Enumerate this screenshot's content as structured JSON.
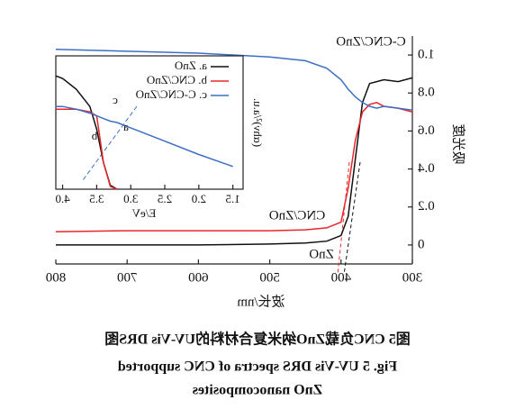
{
  "chart_data": [
    {
      "type": "line",
      "x_label": "波长/nm",
      "y_label": "吸光度",
      "x": [
        800,
        700,
        600,
        500,
        450,
        420,
        400,
        390,
        380,
        370,
        360,
        350,
        340,
        320,
        300
      ],
      "series": [
        {
          "name": "ZnO",
          "color": "#111111",
          "values": [
            0,
            0,
            0,
            0.005,
            0.01,
            0.02,
            0.05,
            0.15,
            0.45,
            0.75,
            0.85,
            0.86,
            0.87,
            0.86,
            0.88
          ]
        },
        {
          "name": "CNC/ZnO",
          "color": "#e8262a",
          "values": [
            0.07,
            0.075,
            0.075,
            0.075,
            0.08,
            0.09,
            0.12,
            0.3,
            0.55,
            0.7,
            0.74,
            0.75,
            0.73,
            0.72,
            0.7
          ]
        },
        {
          "name": "C-CNC/ZnO",
          "color": "#3c6fc4",
          "values": [
            1.03,
            1.02,
            1.01,
            0.99,
            0.97,
            0.93,
            0.87,
            0.82,
            0.78,
            0.75,
            0.73,
            0.72,
            0.73,
            0.72,
            0.71
          ]
        }
      ],
      "xlim": [
        300,
        800
      ],
      "xticks": [
        300,
        400,
        500,
        600,
        700,
        800
      ],
      "ylim": [
        -0.1,
        1.1
      ],
      "yticks": [
        0,
        0.2,
        0.4,
        0.6,
        0.8,
        {
          "value": 1,
          "label": "1.0"
        }
      ],
      "annotations": [
        "C-CNC/ZnO",
        "CNC/ZnO",
        "ZnO"
      ]
    },
    {
      "type": "line",
      "x_label": "E/eV",
      "y_label": "(αhν)²/a.u.",
      "x": [
        4.1,
        4.0,
        3.8,
        3.6,
        3.5,
        3.4,
        3.3,
        3.2,
        3.0,
        2.5,
        2.0,
        1.5
      ],
      "series": [
        {
          "name": "a. ZnO",
          "color": "#111111",
          "values": [
            0.85,
            0.83,
            0.75,
            0.62,
            0.45,
            0.2,
            0.03,
            0.0,
            null,
            null,
            null,
            null
          ]
        },
        {
          "name": "b. CNC/ZnO",
          "color": "#e8262a",
          "values": [
            0.6,
            0.6,
            0.6,
            0.58,
            0.55,
            0.2,
            0.02,
            0.0,
            null,
            null,
            null,
            null
          ]
        },
        {
          "name": "c. C-CNC/ZnO",
          "color": "#3c6fc4",
          "values": [
            0.62,
            0.62,
            0.6,
            0.57,
            0.55,
            0.53,
            0.51,
            0.5,
            0.46,
            0.36,
            0.26,
            0.17
          ]
        }
      ],
      "xlim": [
        1.35,
        4.1
      ],
      "xticks": [
        1.5,
        {
          "value": 2,
          "label": "2.0"
        },
        2.5,
        {
          "value": 3,
          "label": "3.0"
        },
        3.5,
        {
          "value": 4,
          "label": "4.0"
        }
      ],
      "ylim": [
        0,
        1
      ],
      "annotations": [
        "a",
        "b",
        "c"
      ]
    }
  ],
  "caption": [
    "图5 CNC负载ZnO纳米复合材料的UV-Vis DRS图",
    "Fig. 5 UV-Vis DRS spectra of CNC supported",
    "ZnO nanocomposites"
  ]
}
